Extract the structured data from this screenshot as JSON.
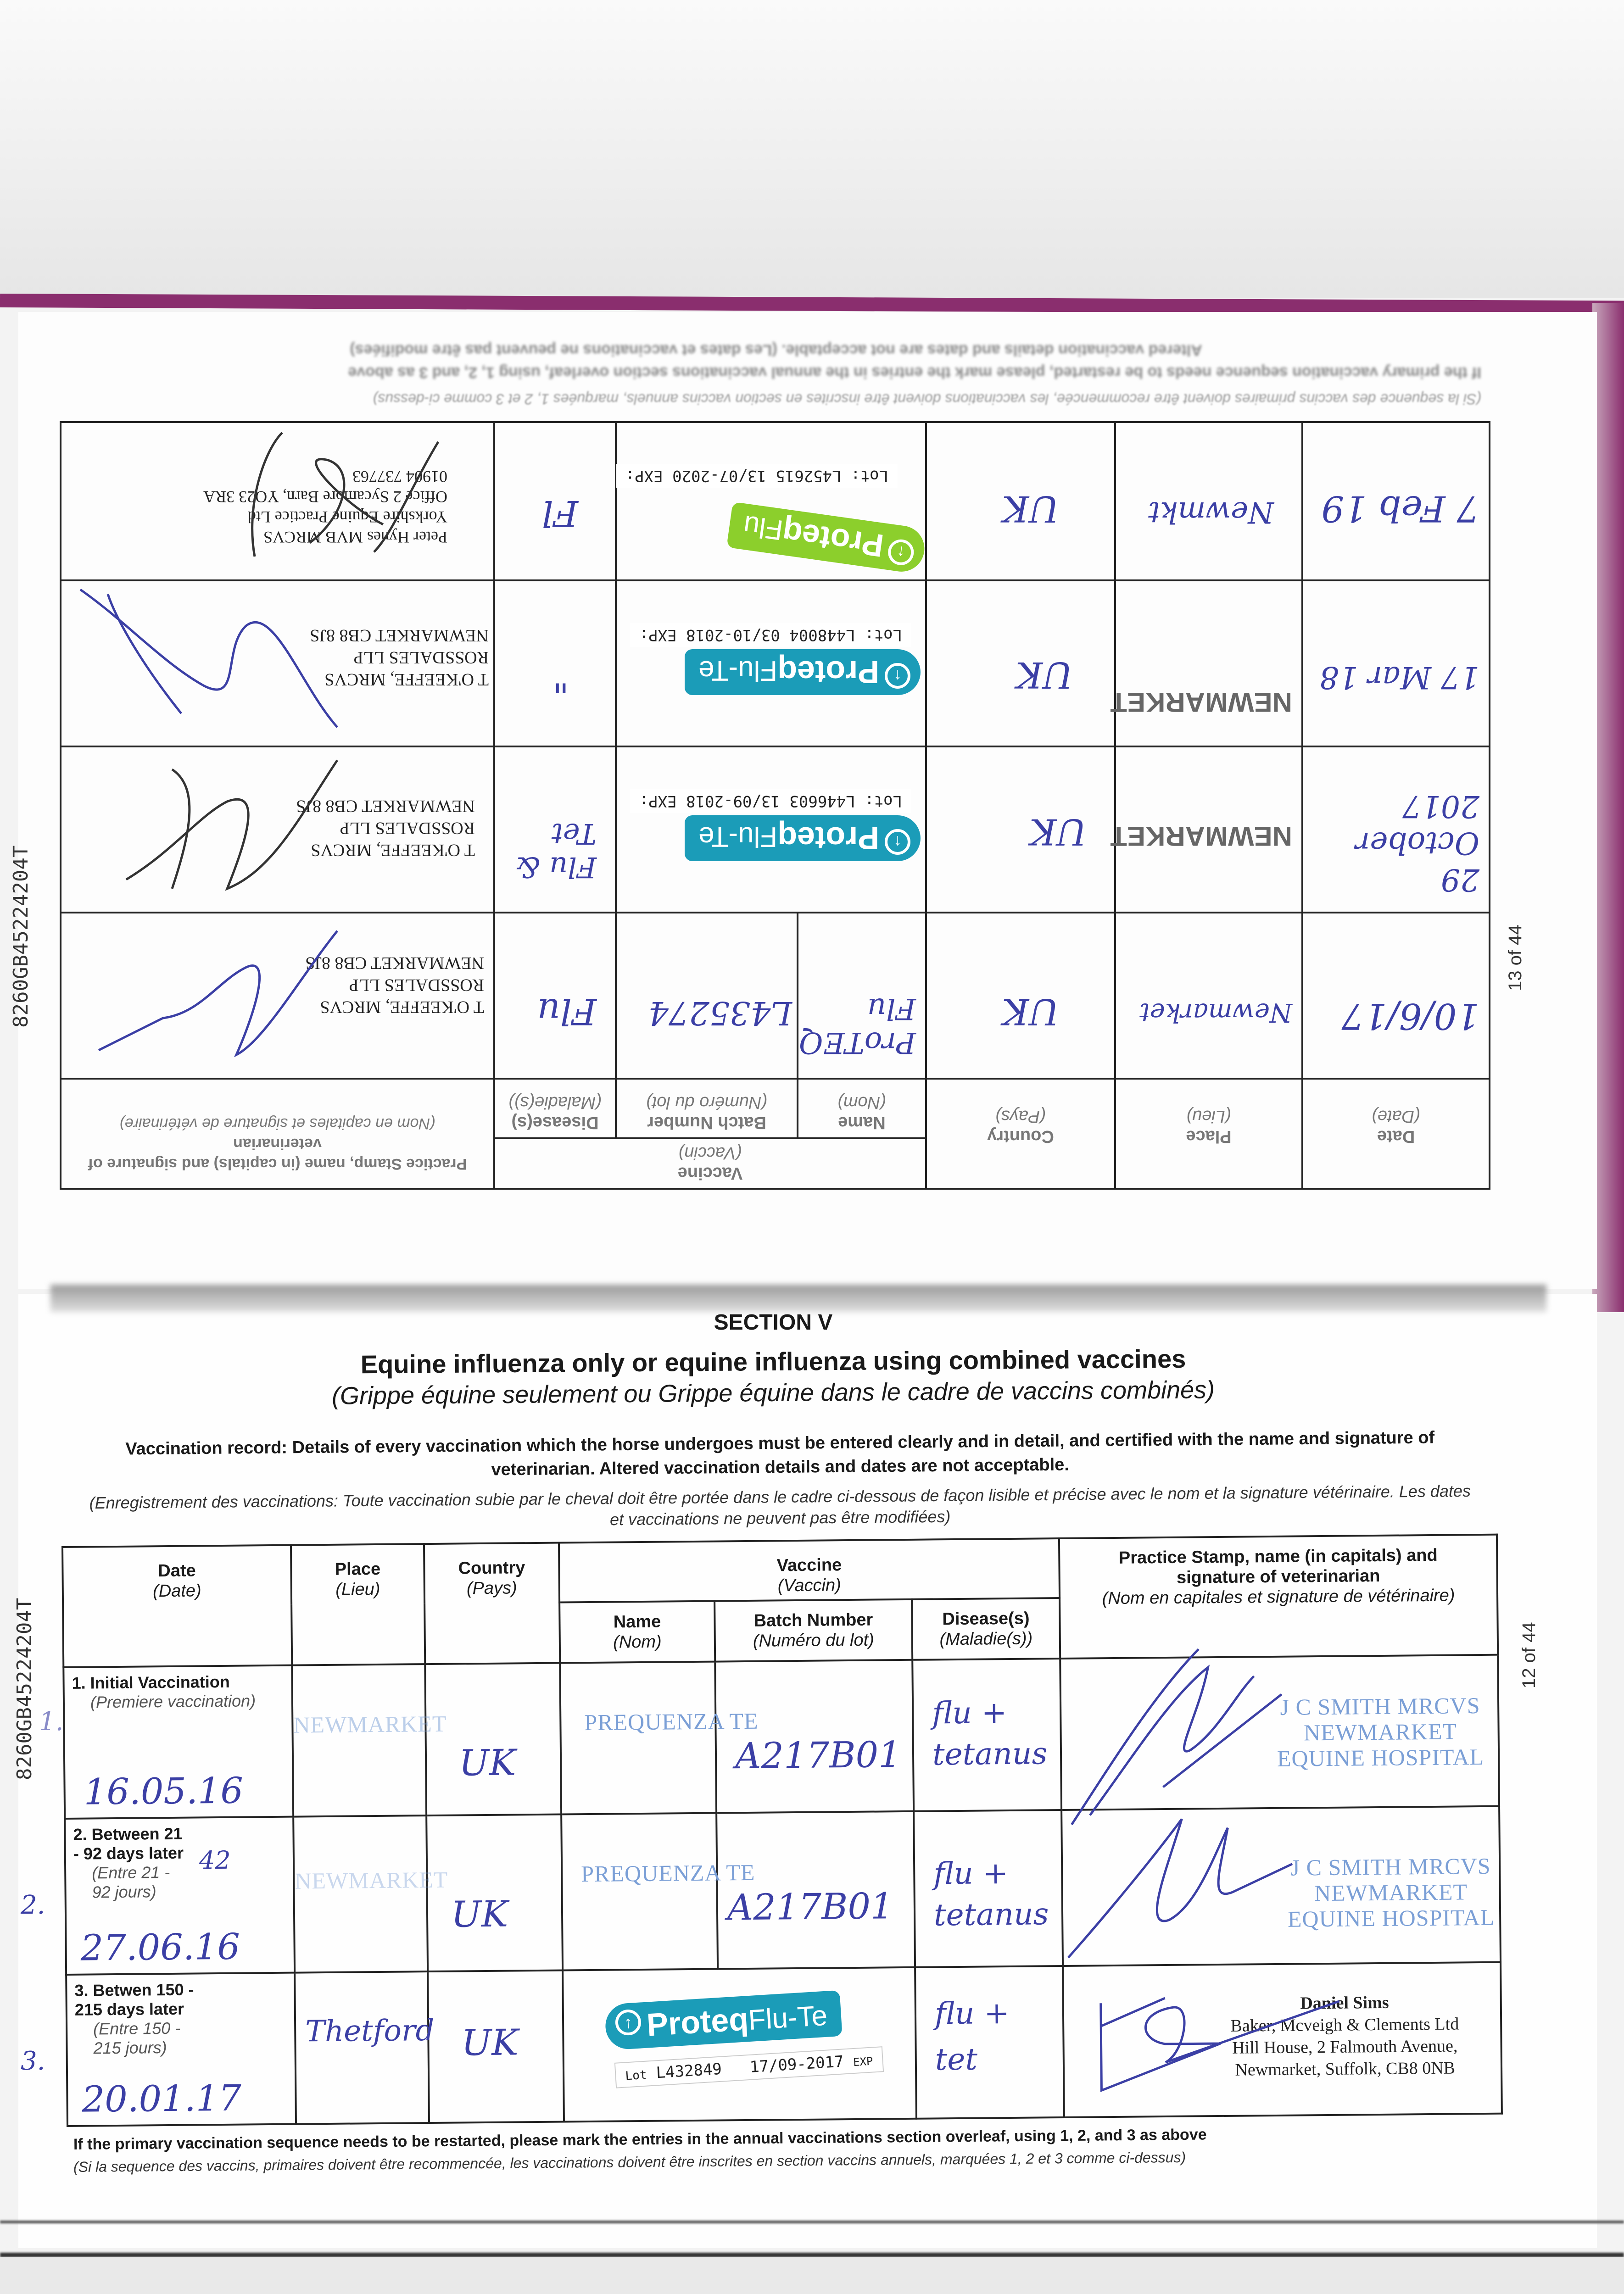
{
  "document_id": "8260GB45224204T",
  "upper_page": {
    "page_number": "13 of 44",
    "headers": {
      "date": "Date",
      "date_fr": "(Date)",
      "place": "Place",
      "place_fr": "(Lieu)",
      "country": "Country",
      "country_fr": "(Pays)",
      "vaccine": "Vaccine",
      "vaccine_fr": "(Vaccin)",
      "name": "Name",
      "name_fr": "(Nom)",
      "batch": "Batch Number",
      "batch_fr": "(Numéro du lot)",
      "disease": "Disease(s)",
      "disease_fr": "(Maladie(s))",
      "practice": "Practice Stamp, name (in capitals) and signature of veterinarian",
      "practice_fr": "(Nom en capitales et signature de vétérinaire)"
    },
    "rows": [
      {
        "date": "10/6/17",
        "place": "Newmarket",
        "country": "UK",
        "name": "ProTEQ Flu",
        "batch": "L435274",
        "disease": "Flu",
        "stamp": [
          "T O'KEEFFE, MRCVS",
          "ROSSDALES LLP",
          "NEWMARKET CB8 8JS"
        ]
      },
      {
        "date": "29 October 2017",
        "place": "NEWMARKET",
        "country": "UK",
        "label": {
          "brand": "Proteq",
          "product": "Flu-Te",
          "lot_label": "Lot:",
          "lot": "L446603",
          "exp_label": "EXP:",
          "exp": "13/09-2018",
          "color": "#1b9cb8"
        },
        "disease": "Flu & Tet",
        "stamp": [
          "T O'KEEFFE, MRCVS",
          "ROSSDALES LLP",
          "NEWMARKET CB8 8JS"
        ]
      },
      {
        "date": "17 Mar 18",
        "place": "NEWMARKET",
        "country": "UK",
        "label": {
          "brand": "Proteq",
          "product": "Flu-Te",
          "lot_label": "Lot:",
          "lot": "L448004",
          "exp_label": "EXP:",
          "exp": "03/10-2018",
          "color": "#1b9cb8"
        },
        "disease": "\"",
        "stamp": [
          "T O'KEEFFE, MRCVS",
          "ROSSDALES LLP",
          "NEWMARKET CB8 8JS"
        ]
      },
      {
        "date": "7 Feb 19",
        "place": "Newmkt",
        "country": "UK",
        "label": {
          "brand": "Proteq",
          "product": "Flu",
          "lot_label": "Lot:",
          "lot": "L452615",
          "exp_label": "EXP:",
          "exp": "13/07-2020",
          "color": "#8ccf2c"
        },
        "disease": "Fl",
        "stamp": [
          "Peter Hynes MVB MRCVS",
          "Yorkshire Equine Practice Ltd",
          "Office 2 Sycamore Barn, YO23 3RA",
          "01904 737763"
        ]
      }
    ],
    "note_fr": "(Si la sequence des vaccins primaires doivent être recommencée, les vaccinations doivent être inscrites en section vaccins annuels, marquées 1, 2 et 3 comme ci-dessus)",
    "note_en": "If the primary vaccination sequence needs to be restarted, please mark the entries in the annual vaccinations section overleaf, using 1, 2, and 3 as above",
    "note_altered": "Altered vaccination details and dates are not acceptable. (Les dates et vaccinations ne peuvent pas être modifiées)"
  },
  "lower_page": {
    "page_number": "12 of 44",
    "section": "SECTION V",
    "title": "Equine influenza only or equine influenza using combined vaccines",
    "subtitle": "(Grippe équine seulement ou Grippe équine dans le cadre de vaccins combinés)",
    "instructions": "Vaccination record: Details of every vaccination which the horse undergoes must be entered clearly and in detail, and certified with the name and signature of veterinarian. Altered vaccination details and dates are not acceptable.",
    "instructions_fr": "(Enregistrement des vaccinations: Toute vaccination subie par le cheval doit être portée dans le cadre ci-dessous de façon lisible et précise avec le nom et la signature vétérinaire. Les dates et vaccinations ne peuvent pas être modifiées)",
    "headers": {
      "date": "Date",
      "date_fr": "(Date)",
      "place": "Place",
      "place_fr": "(Lieu)",
      "country": "Country",
      "country_fr": "(Pays)",
      "vaccine": "Vaccine",
      "vaccine_fr": "(Vaccin)",
      "name": "Name",
      "name_fr": "(Nom)",
      "batch": "Batch Number",
      "batch_fr": "(Numéro du lot)",
      "disease": "Disease(s)",
      "disease_fr": "(Maladie(s))",
      "practice": "Practice Stamp, name (in capitals) and signature of veterinarian",
      "practice_fr": "(Nom en capitales et signature de vétérinaire)"
    },
    "rows": [
      {
        "margin_mark": "1.",
        "label": "1. Initial Vaccination",
        "label_fr": "(Premiere vaccination)",
        "extra": "",
        "date": "16.05.16",
        "place": "NEWMARKET",
        "country": "UK",
        "name": "PREQUENZA TE",
        "batch": "A217B01",
        "disease": "flu + tetanus",
        "stamp": [
          "J C SMITH MRCVS",
          "NEWMARKET",
          "EQUINE HOSPITAL"
        ]
      },
      {
        "margin_mark": "2.",
        "label": "2. Between 21 - 92 days later",
        "label_fr": "(Entre 21 - 92 jours)",
        "extra": "42",
        "date": "27.06.16",
        "place": "NEWMARKET",
        "country": "UK",
        "name": "PREQUENZA TE",
        "batch": "A217B01",
        "disease": "flu + tetanus",
        "stamp": [
          "J C SMITH MRCVS",
          "NEWMARKET",
          "EQUINE HOSPITAL"
        ]
      },
      {
        "margin_mark": "3.",
        "label": "3. Betwen 150 - 215 days later",
        "label_fr": "(Entre 150 - 215 jours)",
        "extra": "",
        "date": "20.01.17",
        "place": "Thetford",
        "country": "UK",
        "vaccine_label": {
          "brand": "Proteq",
          "product": "Flu-Te",
          "lot_label": "Lot",
          "lot": "L432849",
          "exp": "17/09-2017",
          "exp_label": "EXP",
          "color": "#1b9cb8"
        },
        "disease": "flu + tet",
        "stamp": [
          "Daniel Sims",
          "Baker, Mcveigh & Clements Ltd",
          "Hill House, 2 Falmouth Avenue,",
          "Newmarket, Suffolk, CB8 0NB"
        ]
      }
    ],
    "footer_en": "If the primary vaccination sequence needs to be restarted, please mark the entries in the annual vaccinations section overleaf, using 1, 2, and 3 as above",
    "footer_fr": "(Si la sequence des vaccins, primaires doivent être recommencée, les vaccinations doivent être inscrites en section vaccins annuels, marquées 1, 2 et 3 comme ci-dessus)"
  },
  "colors": {
    "cover": "#8a2e6e",
    "ink": "#3b3fa5",
    "stamp": "#7b9fd6",
    "proteq_flu_te": "#1b9cb8",
    "proteq_flu": "#8ccf2c"
  }
}
